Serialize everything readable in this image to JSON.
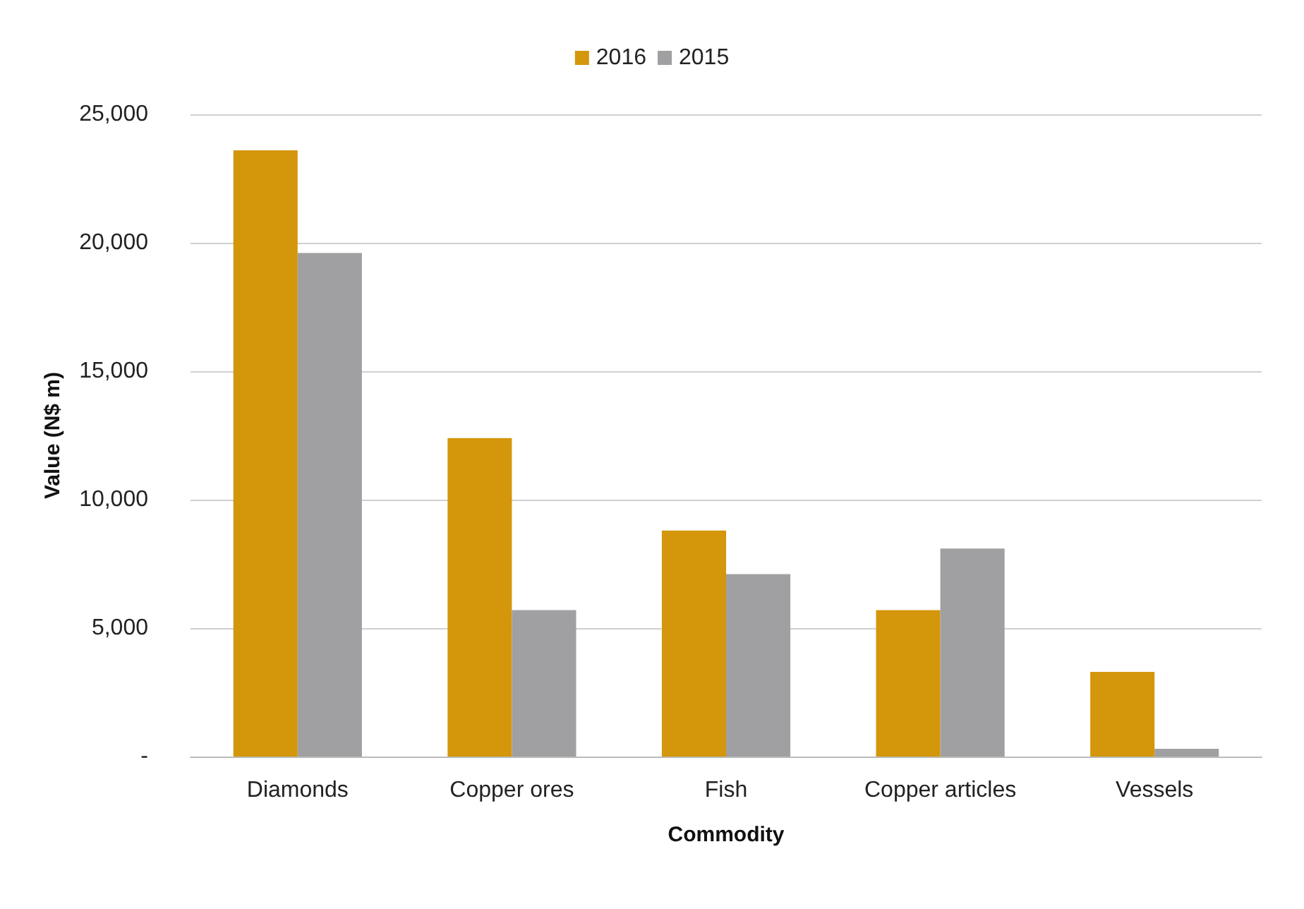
{
  "chart_data": {
    "type": "bar",
    "xlabel": "Commodity",
    "ylabel": "Value (N$ m)",
    "categories": [
      "Diamonds",
      "Copper ores",
      "Fish",
      "Copper articles",
      "Vessels"
    ],
    "series": [
      {
        "name": "2016",
        "color": "#d4960b",
        "values": [
          23600,
          12400,
          8800,
          5700,
          3300
        ]
      },
      {
        "name": "2015",
        "color": "#a09fa2",
        "values": [
          19600,
          5700,
          7100,
          8100,
          300
        ]
      }
    ],
    "ylim": [
      0,
      25000
    ],
    "yticks": [
      {
        "value": 0,
        "label": "-"
      },
      {
        "value": 5000,
        "label": "5,000"
      },
      {
        "value": 10000,
        "label": "10,000"
      },
      {
        "value": 15000,
        "label": "15,000"
      },
      {
        "value": 20000,
        "label": "20,000"
      },
      {
        "value": 25000,
        "label": "25,000"
      }
    ],
    "grid": "y",
    "legend": "top"
  }
}
